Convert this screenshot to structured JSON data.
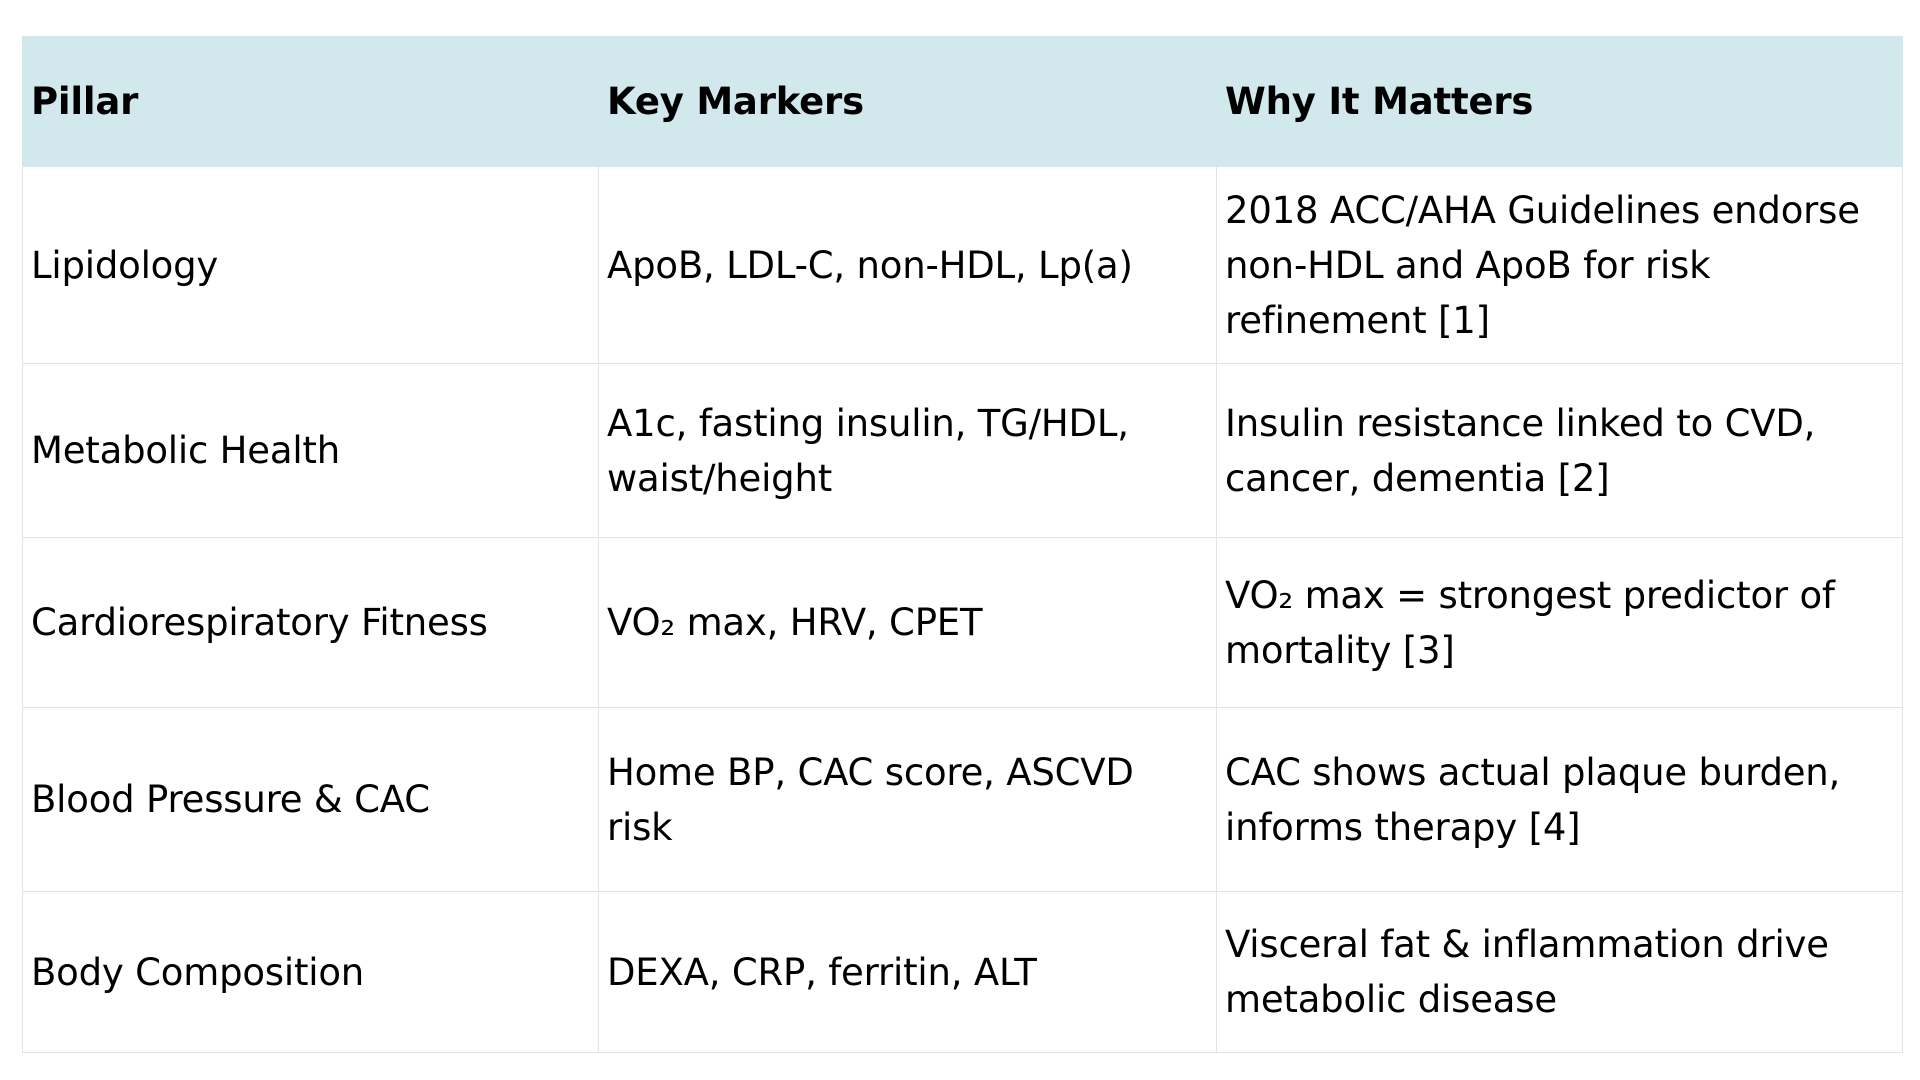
{
  "table": {
    "headers": [
      "Pillar",
      "Key Markers",
      "Why It Matters"
    ],
    "rows": [
      {
        "pillar": "Lipidology",
        "markers": "ApoB, LDL-C, non-HDL, Lp(a)",
        "why": "2018 ACC/AHA Guidelines endorse non-HDL and ApoB for risk refinement [1]"
      },
      {
        "pillar": "Metabolic Health",
        "markers": "A1c, fasting insulin, TG/HDL, waist/height",
        "why": "Insulin resistance linked to CVD, cancer, dementia [2]"
      },
      {
        "pillar": "Cardiorespiratory Fitness",
        "markers": "VO₂ max, HRV, CPET",
        "why": "VO₂ max = strongest predictor of mortality [3]"
      },
      {
        "pillar": "Blood Pressure & CAC",
        "markers": "Home BP, CAC score, ASCVD risk",
        "why": "CAC shows actual plaque burden, informs therapy [4]"
      },
      {
        "pillar": "Body Composition",
        "markers": "DEXA, CRP, ferritin, ALT",
        "why": "Visceral fat & inflammation drive metabolic disease"
      }
    ]
  },
  "colors": {
    "header_background": "#d1e8ec",
    "grid_line": "#e4e4e4",
    "text": "#000000"
  }
}
